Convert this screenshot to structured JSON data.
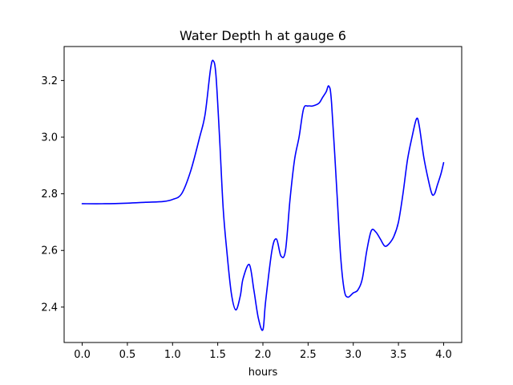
{
  "chart_data": {
    "type": "line",
    "title": "Water Depth h at gauge 6",
    "xlabel": "hours",
    "ylabel": "",
    "xlim": [
      -0.2,
      4.2
    ],
    "ylim": [
      2.275,
      3.32
    ],
    "xticks": [
      0.0,
      0.5,
      1.0,
      1.5,
      2.0,
      2.5,
      3.0,
      3.5,
      4.0
    ],
    "xtick_labels": [
      "0.0",
      "0.5",
      "1.0",
      "1.5",
      "2.0",
      "2.5",
      "3.0",
      "3.5",
      "4.0"
    ],
    "yticks": [
      2.4,
      2.6,
      2.8,
      3.0,
      3.2
    ],
    "ytick_labels": [
      "2.4",
      "2.6",
      "2.8",
      "3.0",
      "3.2"
    ],
    "grid": false,
    "legend": "none",
    "series": [
      {
        "color": "#0000ff",
        "x": [
          0.0,
          0.25,
          0.5,
          0.7,
          0.9,
          1.0,
          1.1,
          1.2,
          1.3,
          1.36,
          1.42,
          1.45,
          1.48,
          1.52,
          1.56,
          1.6,
          1.65,
          1.7,
          1.75,
          1.78,
          1.85,
          1.9,
          1.95,
          2.0,
          2.03,
          2.1,
          2.15,
          2.2,
          2.25,
          2.3,
          2.35,
          2.4,
          2.45,
          2.5,
          2.55,
          2.62,
          2.66,
          2.7,
          2.73,
          2.76,
          2.82,
          2.86,
          2.9,
          2.94,
          3.0,
          3.05,
          3.1,
          3.15,
          3.2,
          3.25,
          3.3,
          3.35,
          3.4,
          3.45,
          3.5,
          3.55,
          3.6,
          3.65,
          3.7,
          3.73,
          3.78,
          3.83,
          3.87,
          3.9,
          3.93,
          3.97,
          4.0
        ],
        "y": [
          2.765,
          2.765,
          2.767,
          2.77,
          2.773,
          2.78,
          2.8,
          2.88,
          3.0,
          3.08,
          3.24,
          3.27,
          3.22,
          3.0,
          2.75,
          2.6,
          2.45,
          2.39,
          2.44,
          2.5,
          2.55,
          2.46,
          2.36,
          2.32,
          2.42,
          2.6,
          2.64,
          2.58,
          2.6,
          2.78,
          2.92,
          3.0,
          3.1,
          3.11,
          3.11,
          3.12,
          3.14,
          3.16,
          3.18,
          3.12,
          2.8,
          2.58,
          2.46,
          2.435,
          2.45,
          2.46,
          2.5,
          2.6,
          2.67,
          2.665,
          2.64,
          2.615,
          2.625,
          2.65,
          2.7,
          2.8,
          2.92,
          3.0,
          3.065,
          3.04,
          2.93,
          2.85,
          2.8,
          2.8,
          2.83,
          2.87,
          2.91
        ]
      }
    ]
  }
}
